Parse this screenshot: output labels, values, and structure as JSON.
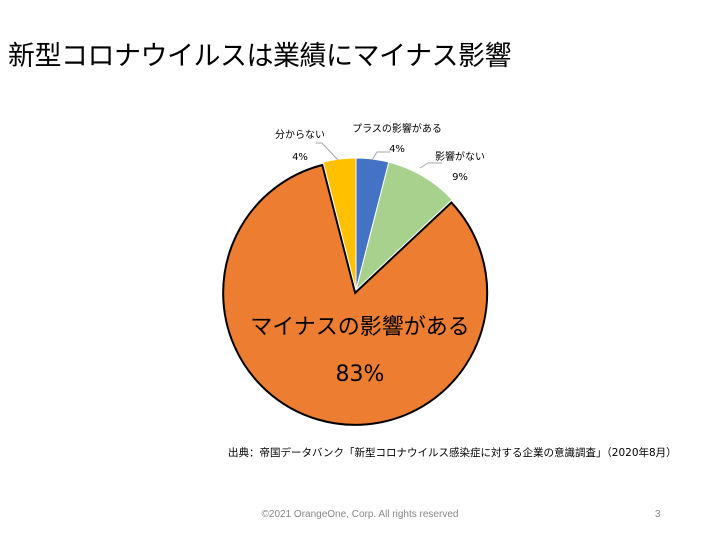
{
  "slide": {
    "title": "新型コロナウイルスは業績にマイナス影響",
    "source": "出典：帝国データバンク「新型コロナウイルス感染症に対する企業の意識調査」（2020年8月）",
    "copyright": "©2021 OrangeOne, Corp. All rights reserved",
    "page_number": "3"
  },
  "chart_data": {
    "type": "pie",
    "title": "",
    "slices": [
      {
        "label": "プラスの影響がある",
        "value": 4,
        "value_label": "4%",
        "color": "#4472C4"
      },
      {
        "label": "影響がない",
        "value": 9,
        "value_label": "9%",
        "color": "#A9D18E"
      },
      {
        "label": "マイナスの影響がある",
        "value": 83,
        "value_label": "83%",
        "color": "#ED7D31"
      },
      {
        "label": "分からない",
        "value": 4,
        "value_label": "4%",
        "color": "#FFC000"
      }
    ]
  }
}
